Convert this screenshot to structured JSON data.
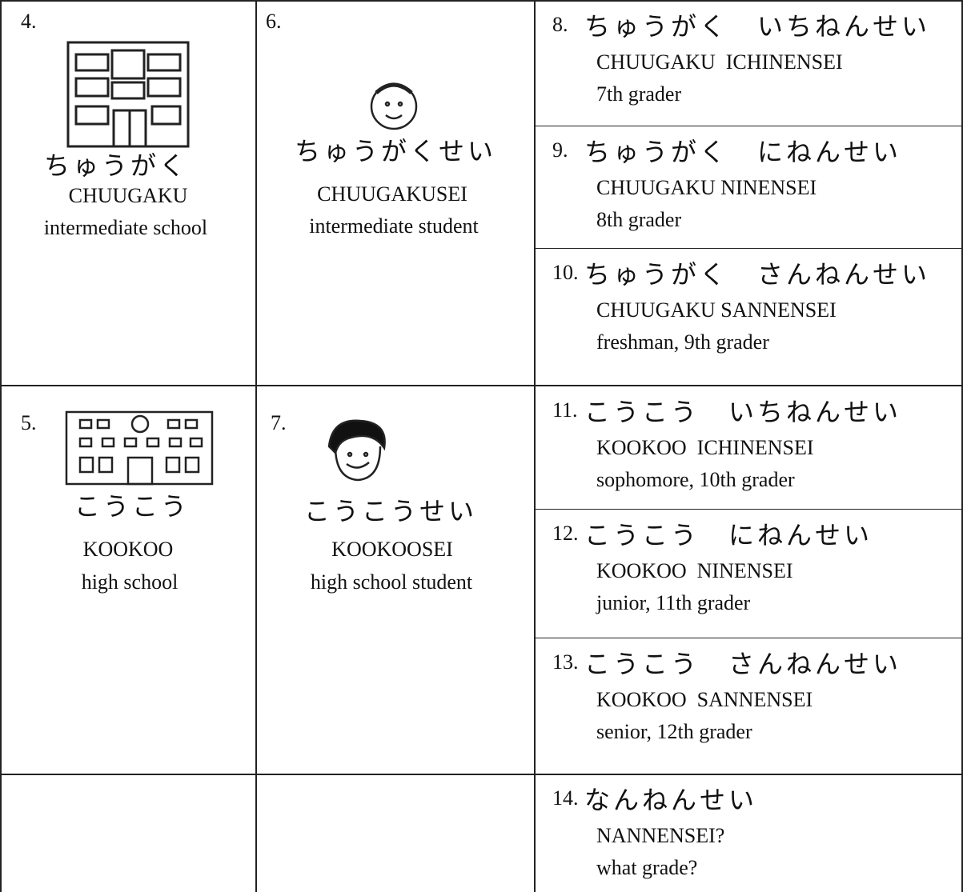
{
  "cells": [
    {
      "number": "4.",
      "kana": "ちゅうがく",
      "romaji": "CHUUGAKU",
      "english": "intermediate school"
    },
    {
      "number": "6.",
      "kana": "ちゅうがくせい",
      "romaji": "CHUUGAKUSEI",
      "english": "intermediate student"
    },
    {
      "number": "5.",
      "kana": "こうこう",
      "romaji": "KOOKOO",
      "english": "high school"
    },
    {
      "number": "7.",
      "kana": "こうこうせい",
      "romaji": "KOOKOOSEI",
      "english": "high school student"
    }
  ],
  "grades": [
    {
      "number": "8.",
      "kana": "ちゅうがく　いちねんせい",
      "romaji": "CHUUGAKU  ICHINENSEI",
      "english": "7th grader"
    },
    {
      "number": "9.",
      "kana": "ちゅうがく　にねんせい",
      "romaji": "CHUUGAKU NINENSEI",
      "english": "8th grader"
    },
    {
      "number": "10.",
      "kana": "ちゅうがく　さんねんせい",
      "romaji": "CHUUGAKU SANNENSEI",
      "english": "freshman, 9th grader"
    },
    {
      "number": "11.",
      "kana": "こうこう　いちねんせい",
      "romaji": "KOOKOO  ICHINENSEI",
      "english": "sophomore, 10th grader"
    },
    {
      "number": "12.",
      "kana": "こうこう　にねんせい",
      "romaji": "KOOKOO  NINENSEI",
      "english": "junior, 11th grader"
    },
    {
      "number": "13.",
      "kana": "こうこう　さんねんせい",
      "romaji": "KOOKOO  SANNENSEI",
      "english": "senior, 12th grader"
    },
    {
      "number": "14.",
      "kana": "なんねんせい",
      "romaji": "NANNENSEI?",
      "english": "what grade?"
    }
  ]
}
